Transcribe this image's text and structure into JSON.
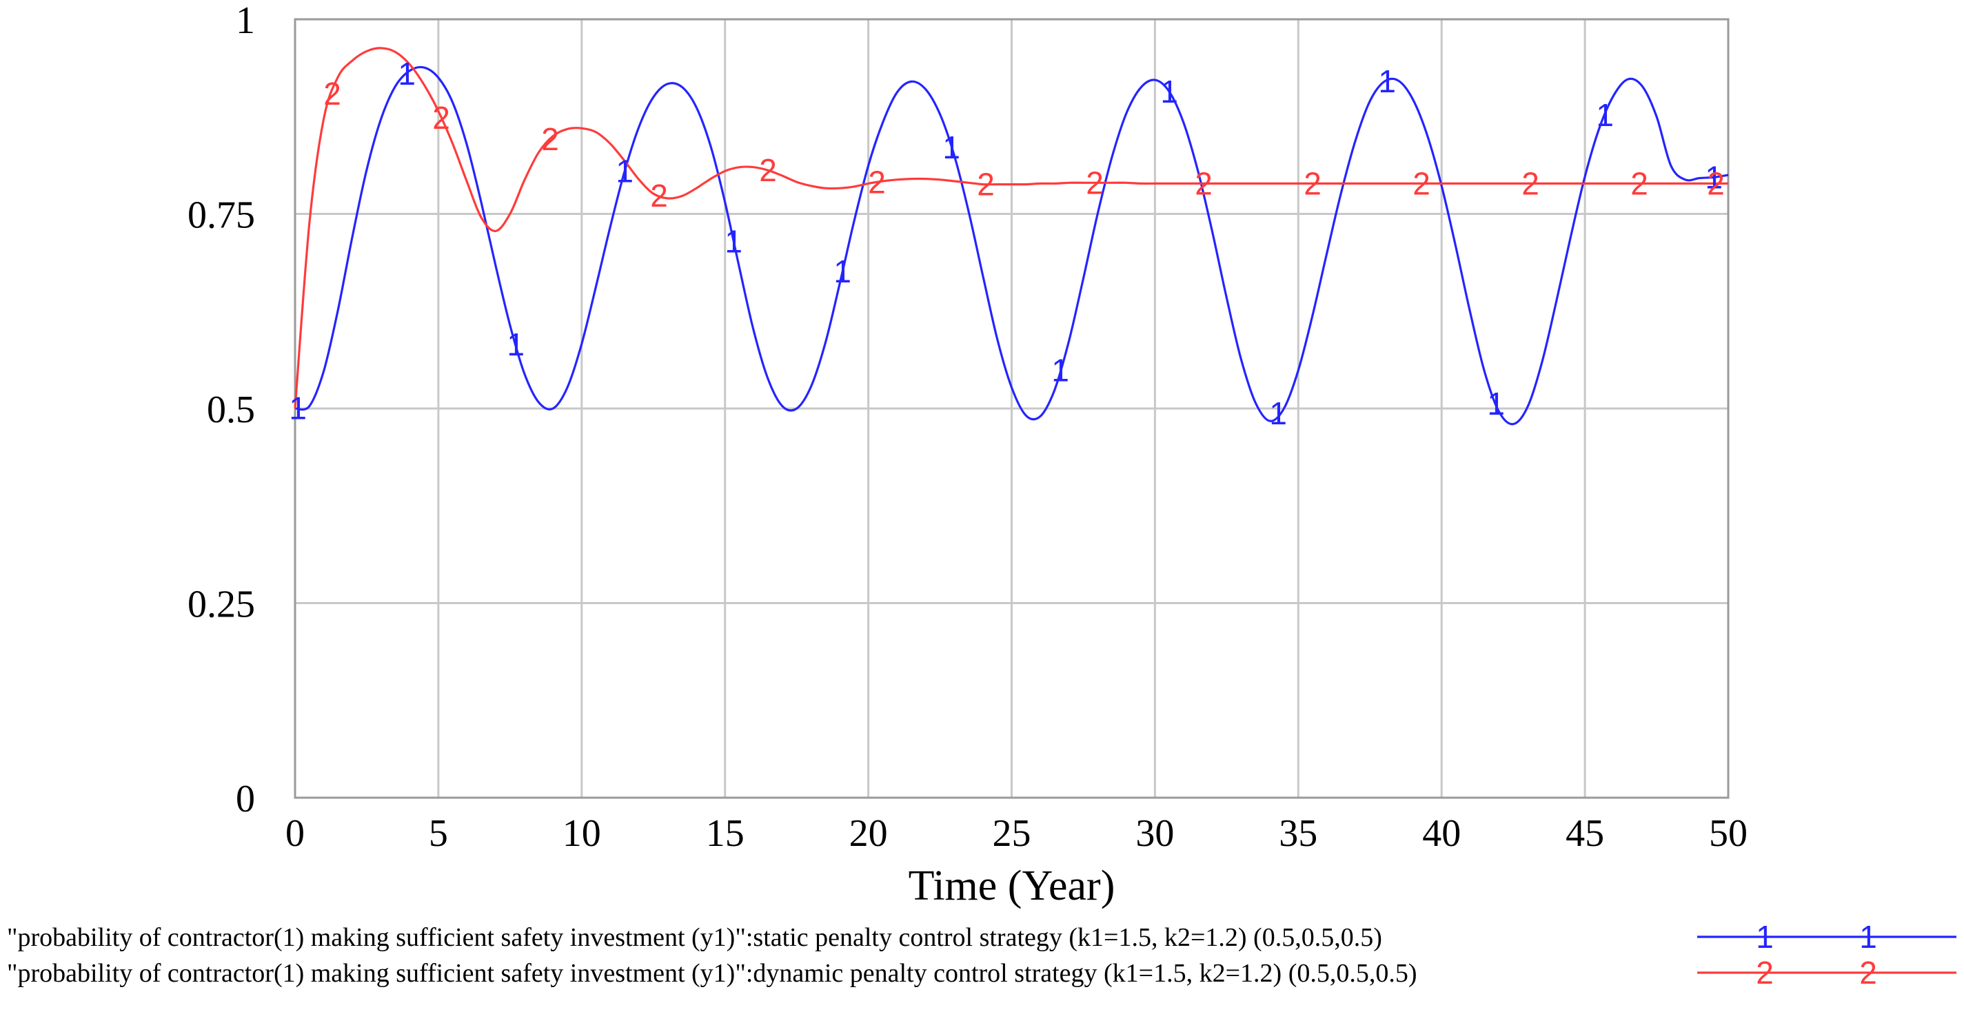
{
  "chart_data": {
    "type": "line",
    "title": "",
    "xlabel": "Time (Year)",
    "ylabel": "",
    "xlim": [
      0,
      50
    ],
    "ylim": [
      0,
      1
    ],
    "x_ticks": [
      0,
      5,
      10,
      15,
      20,
      25,
      30,
      35,
      40,
      45,
      50
    ],
    "x_tick_labels": [
      "0",
      "5",
      "10",
      "15",
      "20",
      "25",
      "30",
      "35",
      "40",
      "45",
      "50"
    ],
    "y_ticks": [
      0,
      0.25,
      0.5,
      0.75,
      1
    ],
    "y_tick_labels": [
      "0",
      "0.25",
      "0.5",
      "0.75",
      "1"
    ],
    "grid": true,
    "legend_position": "bottom",
    "x": [
      0,
      0.5,
      1,
      1.5,
      2,
      2.5,
      3,
      3.5,
      4,
      4.5,
      5,
      5.5,
      6,
      6.5,
      7,
      7.5,
      8,
      8.5,
      9,
      9.5,
      10,
      10.5,
      11,
      11.5,
      12,
      12.5,
      13,
      13.5,
      14,
      14.5,
      15,
      15.5,
      16,
      16.5,
      17,
      17.5,
      18,
      18.5,
      19,
      19.5,
      20,
      20.5,
      21,
      21.5,
      22,
      22.5,
      23,
      23.5,
      24,
      24.5,
      25,
      25.5,
      26,
      26.5,
      27,
      27.5,
      28,
      28.5,
      29,
      29.5,
      30,
      30.5,
      31,
      31.5,
      32,
      32.5,
      33,
      33.5,
      34,
      34.5,
      35,
      35.5,
      36,
      36.5,
      37,
      37.5,
      38,
      38.5,
      39,
      39.5,
      40,
      40.5,
      41,
      41.5,
      42,
      42.5,
      43,
      43.5,
      44,
      44.5,
      45,
      45.5,
      46,
      46.5,
      47,
      47.5,
      48,
      48.5,
      49,
      49.5,
      50
    ],
    "series": [
      {
        "name": "\"probability of contractor(1) making sufficient safety investment (y1)\":static penalty control strategy (k1=1.5, k2=1.2) (0.5,0.5,0.5)",
        "marker": "1",
        "color": "#2424ff",
        "values": [
          0.5,
          0.503,
          0.548,
          0.627,
          0.721,
          0.807,
          0.872,
          0.914,
          0.934,
          0.938,
          0.925,
          0.893,
          0.838,
          0.764,
          0.683,
          0.607,
          0.545,
          0.508,
          0.5,
          0.527,
          0.583,
          0.657,
          0.734,
          0.805,
          0.862,
          0.9,
          0.917,
          0.913,
          0.887,
          0.837,
          0.765,
          0.681,
          0.6,
          0.538,
          0.503,
          0.5,
          0.528,
          0.584,
          0.66,
          0.74,
          0.812,
          0.867,
          0.906,
          0.92,
          0.91,
          0.878,
          0.825,
          0.753,
          0.67,
          0.589,
          0.527,
          0.491,
          0.49,
          0.524,
          0.587,
          0.667,
          0.75,
          0.823,
          0.879,
          0.912,
          0.922,
          0.907,
          0.867,
          0.805,
          0.727,
          0.642,
          0.564,
          0.508,
          0.484,
          0.5,
          0.549,
          0.62,
          0.7,
          0.778,
          0.845,
          0.895,
          0.92,
          0.921,
          0.897,
          0.851,
          0.786,
          0.707,
          0.623,
          0.547,
          0.496,
          0.48,
          0.502,
          0.559,
          0.637,
          0.72,
          0.798,
          0.86,
          0.902,
          0.923,
          0.914,
          0.875,
          0.812,
          0.794,
          0.796,
          0.797,
          0.8
        ]
      },
      {
        "name": "\"probability of contractor(1) making sufficient safety investment (y1)\":dynamic penalty control strategy (k1=1.5, k2=1.2) (0.5,0.5,0.5)",
        "marker": "2",
        "color": "#ff3b3b",
        "values": [
          0.5,
          0.738,
          0.872,
          0.926,
          0.947,
          0.959,
          0.963,
          0.958,
          0.942,
          0.916,
          0.882,
          0.84,
          0.791,
          0.745,
          0.728,
          0.75,
          0.793,
          0.829,
          0.85,
          0.859,
          0.86,
          0.855,
          0.84,
          0.818,
          0.794,
          0.776,
          0.77,
          0.773,
          0.783,
          0.795,
          0.805,
          0.81,
          0.81,
          0.806,
          0.799,
          0.791,
          0.786,
          0.783,
          0.783,
          0.785,
          0.789,
          0.792,
          0.794,
          0.795,
          0.795,
          0.794,
          0.792,
          0.79,
          0.788,
          0.788,
          0.788,
          0.788,
          0.789,
          0.789,
          0.79,
          0.79,
          0.79,
          0.79,
          0.79,
          0.789,
          0.789,
          0.789,
          0.789,
          0.789,
          0.789,
          0.789,
          0.789,
          0.789,
          0.789,
          0.789,
          0.789,
          0.789,
          0.789,
          0.789,
          0.789,
          0.789,
          0.789,
          0.789,
          0.789,
          0.789,
          0.789,
          0.789,
          0.789,
          0.789,
          0.789,
          0.789,
          0.789,
          0.789,
          0.789,
          0.789,
          0.789,
          0.789,
          0.789,
          0.789,
          0.789,
          0.789,
          0.789,
          0.789,
          0.789,
          0.789,
          0.789
        ]
      }
    ]
  }
}
